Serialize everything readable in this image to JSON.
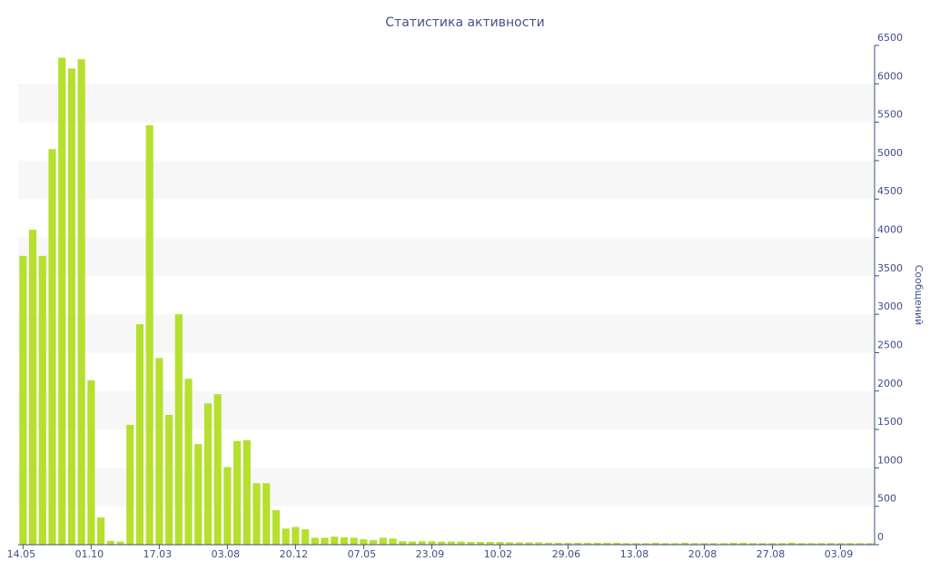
{
  "chart_data": {
    "type": "bar",
    "title": "Статистика активности",
    "y_axis_label": "Сообщений",
    "categories": [
      "14.05",
      null,
      null,
      null,
      null,
      null,
      null,
      "01.10",
      null,
      null,
      null,
      null,
      null,
      null,
      "17.03",
      null,
      null,
      null,
      null,
      null,
      null,
      "03.08",
      null,
      null,
      null,
      null,
      null,
      null,
      "20.12",
      null,
      null,
      null,
      null,
      null,
      null,
      "07.05",
      null,
      null,
      null,
      null,
      null,
      null,
      "23.09",
      null,
      null,
      null,
      null,
      null,
      null,
      "10.02",
      null,
      null,
      null,
      null,
      null,
      null,
      "29.06",
      null,
      null,
      null,
      null,
      null,
      null,
      "13.08",
      null,
      null,
      null,
      null,
      null,
      null,
      "20.08",
      null,
      null,
      null,
      null,
      null,
      null,
      "27.08",
      null,
      null,
      null,
      null,
      null,
      null,
      "03.09",
      null,
      null,
      null
    ],
    "values": [
      3760,
      4100,
      3760,
      5150,
      6340,
      6200,
      6320,
      2140,
      355,
      50,
      40,
      1560,
      2870,
      5460,
      2430,
      1690,
      3000,
      2160,
      1310,
      1840,
      1960,
      1010,
      1350,
      1360,
      800,
      800,
      450,
      210,
      230,
      200,
      90,
      90,
      105,
      95,
      90,
      70,
      60,
      90,
      80,
      45,
      40,
      45,
      45,
      40,
      40,
      40,
      35,
      35,
      35,
      35,
      30,
      30,
      30,
      30,
      25,
      25,
      25,
      25,
      25,
      25,
      25,
      25,
      20,
      20,
      20,
      25,
      20,
      20,
      25,
      20,
      20,
      20,
      20,
      25,
      25,
      20,
      20,
      20,
      20,
      25,
      20,
      20,
      20,
      20,
      20,
      20,
      20,
      20
    ],
    "color": "#b5e02e",
    "ylim": [
      0,
      6500
    ],
    "yticks": [
      0,
      500,
      1000,
      1500,
      2000,
      2500,
      3000,
      3500,
      4000,
      4500,
      5000,
      5500,
      6000,
      6500
    ],
    "grid": "bands",
    "y_axis_side": "right"
  }
}
